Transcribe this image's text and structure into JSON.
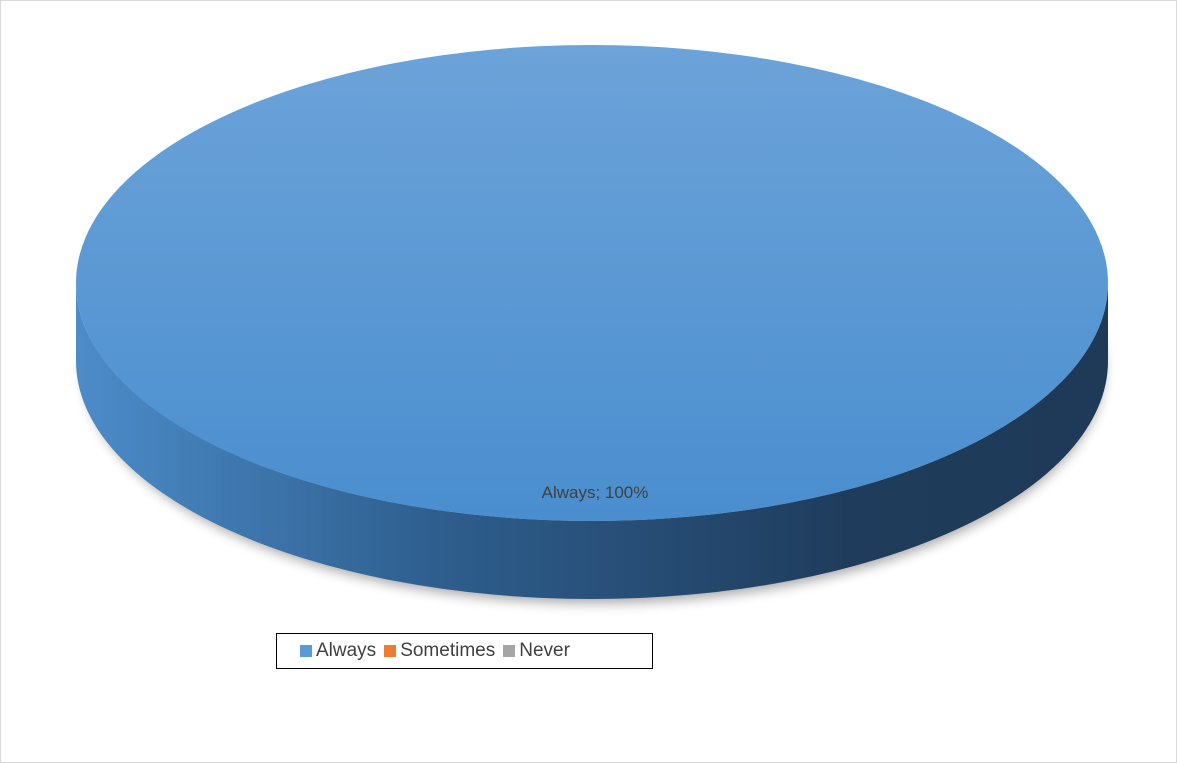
{
  "chart_data": {
    "type": "pie",
    "style": "3d",
    "title": "",
    "categories": [
      "Always",
      "Sometimes",
      "Never"
    ],
    "values": [
      100,
      0,
      0
    ],
    "unit": "%",
    "colors": [
      "#5B9BD5",
      "#ED7D31",
      "#A5A5A5"
    ],
    "data_labels": [
      {
        "category": "Always",
        "text": "Always; 100%"
      }
    ],
    "legend": {
      "placement": "bottom-left",
      "entries": [
        "Always",
        "Sometimes",
        "Never"
      ]
    }
  }
}
